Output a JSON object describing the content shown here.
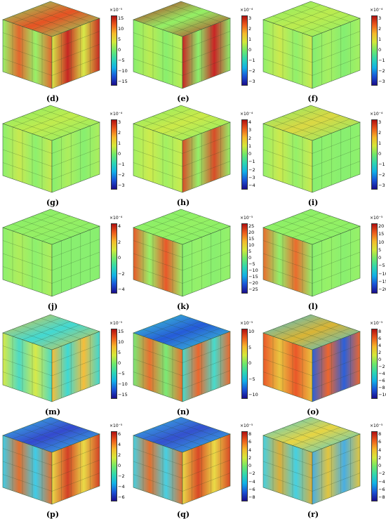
{
  "colormap": [
    "#1a0d8c",
    "#1a53d6",
    "#12b0e6",
    "#2fd6b0",
    "#6fe86a",
    "#d4e83a",
    "#f5b82a",
    "#ec5a1c",
    "#b01010"
  ],
  "panels": [
    {
      "label": "(d)",
      "exponent": "×10⁻⁵",
      "ticks": [
        "15",
        "10",
        "5",
        "0",
        "−5",
        "−10",
        "−15"
      ],
      "fills": [
        "#8ff05c",
        "#e2591c",
        "#d4e83a",
        "#c21410",
        "#79ec65",
        "#e64a18"
      ]
    },
    {
      "label": "(e)",
      "exponent": "×10⁻⁴",
      "ticks": [
        "3",
        "2",
        "1",
        "0",
        "−1",
        "−2",
        "−3"
      ],
      "fills": [
        "#7fee62",
        "#b6ea45",
        "#c51212",
        "#82ee60",
        "#b51010",
        "#8ef05d"
      ]
    },
    {
      "label": "(f)",
      "exponent": "×10⁻⁴",
      "ticks": [
        "3",
        "2",
        "1",
        "0",
        "−1",
        "−2",
        "−3"
      ],
      "fills": [
        "#88ef60",
        "#c8e840",
        "#7aed66",
        "#9fee54",
        "#84ef62",
        "#b8ea46"
      ]
    },
    {
      "label": "(g)",
      "exponent": "×10⁻⁴",
      "ticks": [
        "3",
        "2",
        "1",
        "0",
        "−1",
        "−2",
        "−3"
      ],
      "fills": [
        "#84ef62",
        "#c4e842",
        "#7eee64",
        "#a6ed50",
        "#80ee63",
        "#bdea45"
      ]
    },
    {
      "label": "(h)",
      "exponent": "×10⁻⁴",
      "ticks": [
        "4",
        "3",
        "2",
        "1",
        "0",
        "−1",
        "−2",
        "−3",
        "−4"
      ],
      "fills": [
        "#9bef56",
        "#c9ea3f",
        "#d63d16",
        "#8cef5d",
        "#80ee63",
        "#c9e840"
      ]
    },
    {
      "label": "(i)",
      "exponent": "×10⁻⁴",
      "ticks": [
        "3",
        "2",
        "1",
        "0",
        "−1",
        "−2",
        "−3"
      ],
      "fills": [
        "#8cef5e",
        "#c8e840",
        "#7eee64",
        "#86ef60",
        "#80ee63",
        "#d9d63a"
      ]
    },
    {
      "label": "(j)",
      "exponent": "×10⁻⁴",
      "ticks": [
        "4",
        "2",
        "0",
        "−2",
        "−4"
      ],
      "fills": [
        "#84ef62",
        "#a9ec4f",
        "#7fee64",
        "#80ee63",
        "#80ee63",
        "#90ef5c"
      ]
    },
    {
      "label": "(k)",
      "exponent": "×10⁻⁵",
      "ticks": [
        "25",
        "20",
        "15",
        "10",
        "5",
        "0",
        "−5",
        "−10",
        "−15",
        "−20",
        "−25"
      ],
      "fills": [
        "#e84a18",
        "#8ff05c",
        "#80ee63",
        "#8cef5e",
        "#80ee63",
        "#8ff05c"
      ]
    },
    {
      "label": "(l)",
      "exponent": "×10⁻⁵",
      "ticks": [
        "20",
        "15",
        "10",
        "5",
        "0",
        "−5",
        "−10",
        "−15",
        "−20"
      ],
      "fills": [
        "#e9601c",
        "#88ef60",
        "#80ee63",
        "#8ff05c",
        "#80ee63",
        "#8ff05c"
      ]
    },
    {
      "label": "(m)",
      "exponent": "×10⁻⁵",
      "ticks": [
        "15",
        "10",
        "5",
        "0",
        "−5",
        "−10",
        "−15"
      ],
      "fills": [
        "#d4e83a",
        "#3fd8c0",
        "#f5b82a",
        "#2fd6d0",
        "#e8c030",
        "#39d6d0"
      ]
    },
    {
      "label": "(n)",
      "exponent": "×10⁻⁵",
      "ticks": [
        "10",
        "5",
        "0",
        "−5",
        "−10"
      ],
      "fills": [
        "#6fe86a",
        "#e8641e",
        "#38d8c8",
        "#ec5a1c",
        "#36d4d0",
        "#1a53d6"
      ]
    },
    {
      "label": "(o)",
      "exponent": "×10⁻⁵",
      "ticks": [
        "8",
        "6",
        "4",
        "2",
        "0",
        "−2",
        "−4",
        "−6",
        "−8",
        "−10"
      ],
      "fills": [
        "#e94a18",
        "#e8c030",
        "#1a53d6",
        "#ec5a1c",
        "#2fbfe6",
        "#d8b02a"
      ]
    },
    {
      "label": "(p)",
      "exponent": "×10⁻⁵",
      "ticks": [
        "6",
        "4",
        "2",
        "0",
        "−2",
        "−4",
        "−6"
      ],
      "fills": [
        "#2fc8e6",
        "#e0641e",
        "#e8d838",
        "#d03014",
        "#32c4e2",
        "#2a40cc"
      ]
    },
    {
      "label": "(q)",
      "exponent": "×10⁻⁵",
      "ticks": [
        "8",
        "6",
        "4",
        "2",
        "0",
        "−2",
        "−4",
        "−6",
        "−8"
      ],
      "fills": [
        "#38cce0",
        "#e0641e",
        "#e8d838",
        "#d63a14",
        "#2fc0e6",
        "#2a48cc"
      ]
    },
    {
      "label": "(r)",
      "exponent": "×10⁻⁵",
      "ticks": [
        "8",
        "6",
        "4",
        "2",
        "0",
        "−2",
        "−4",
        "−6",
        "−8"
      ],
      "fills": [
        "#36cce0",
        "#d9a82a",
        "#3aa8e0",
        "#e0c030",
        "#34c8e2",
        "#e6d23a"
      ]
    }
  ]
}
